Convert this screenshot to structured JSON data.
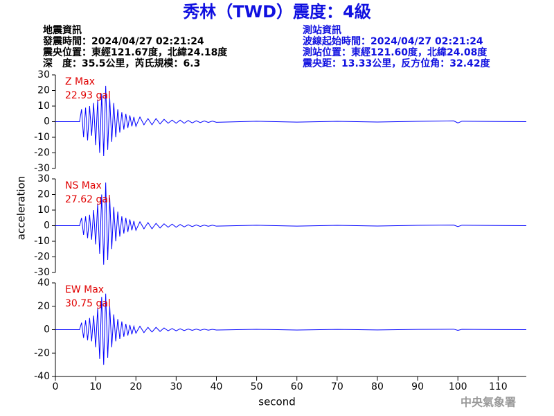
{
  "chart_data": {
    "type": "line",
    "title": "秀林（TWD）震度：4級",
    "info_left": [
      "地震資訊",
      "發震時間：2024/04/27 02:21:24",
      "震央位置：東經121.67度，北緯24.18度",
      "深　度：35.5公里，芮氏規模：6.3"
    ],
    "info_right": [
      "測站資訊",
      "波線起始時間：2024/04/27 02:21:24",
      "測站位置：東經121.60度，北緯24.08度",
      "震央距：13.33公里，反方位角：32.42度"
    ],
    "xlabel": "second",
    "ylabel": "acceleration",
    "footer": "中央氣象署",
    "xlim": [
      0,
      117
    ],
    "xticks": [
      0,
      10,
      20,
      30,
      40,
      50,
      60,
      70,
      80,
      90,
      100,
      110
    ],
    "x": [
      0,
      6,
      6.5,
      7,
      7.5,
      8,
      8.5,
      9,
      9.5,
      10,
      10.5,
      11,
      11.5,
      12,
      12.5,
      13,
      13.5,
      14,
      14.5,
      15,
      15.5,
      16,
      16.5,
      17,
      17.5,
      18,
      18.5,
      19,
      19.5,
      20,
      21,
      22,
      23,
      24,
      25,
      26,
      27,
      28,
      29,
      30,
      31,
      32,
      33,
      34,
      35,
      36,
      37,
      38,
      39,
      40,
      50,
      60,
      70,
      80,
      90,
      99,
      100,
      101,
      110,
      117
    ],
    "series": [
      {
        "name": "Z Max",
        "peak": 22.93,
        "peak_label": "22.93 gal",
        "color": "#0000ff",
        "ylim": [
          -30,
          30
        ],
        "yticks": [
          -30,
          -20,
          -10,
          0,
          10,
          20,
          30
        ],
        "values": [
          0,
          0,
          8,
          -10,
          9,
          -12,
          10,
          -9,
          12,
          -15,
          14,
          -20,
          18,
          -22,
          22.93,
          -18,
          15,
          -13,
          12,
          -10,
          8,
          -7,
          6,
          -5,
          5,
          -4,
          4,
          -3,
          3,
          -3,
          3,
          -2,
          2,
          -2,
          2,
          -1.5,
          1.5,
          -1,
          1,
          -1,
          1,
          -1,
          0.8,
          -0.8,
          0.6,
          -0.6,
          0.5,
          -0.5,
          0.4,
          -0.4,
          0.3,
          -0.3,
          0.2,
          -0.2,
          0.2,
          0.5,
          -0.8,
          0.3,
          0.1,
          0
        ]
      },
      {
        "name": "NS Max",
        "peak": 27.62,
        "peak_label": "27.62 gal",
        "color": "#0000ff",
        "ylim": [
          -30,
          30
        ],
        "yticks": [
          -30,
          -20,
          -10,
          0,
          10,
          20,
          30
        ],
        "values": [
          0,
          0,
          5,
          -6,
          6,
          -8,
          7,
          -9,
          10,
          -12,
          14,
          -18,
          20,
          -25,
          27.62,
          -22,
          18,
          -15,
          12,
          -10,
          9,
          -7,
          6,
          -5,
          5,
          -4,
          4,
          -3,
          3,
          -3,
          2.5,
          -2,
          2,
          -2,
          1.5,
          -1.5,
          1.2,
          -1,
          1,
          -1,
          0.8,
          -0.8,
          0.6,
          -0.6,
          0.5,
          -0.5,
          0.4,
          -0.4,
          0.3,
          -0.3,
          0.3,
          -0.3,
          0.2,
          -0.2,
          0.2,
          0.4,
          -0.6,
          0.3,
          0.1,
          0
        ]
      },
      {
        "name": "EW Max",
        "peak": 30.75,
        "peak_label": "30.75 gal",
        "color": "#0000ff",
        "ylim": [
          -40,
          40
        ],
        "yticks": [
          -40,
          -20,
          0,
          20,
          40
        ],
        "values": [
          0,
          0,
          6,
          -7,
          8,
          -9,
          10,
          -10,
          12,
          -15,
          18,
          -25,
          28,
          -30,
          30.75,
          -24,
          20,
          -15,
          13,
          -10,
          9,
          -8,
          7,
          -6,
          5,
          -5,
          4,
          -4,
          3,
          -3,
          3,
          -2.5,
          2,
          -2,
          2,
          -1.5,
          1.5,
          -1,
          1,
          -1,
          0.8,
          -0.8,
          0.6,
          -0.6,
          0.5,
          -0.5,
          0.4,
          -0.4,
          0.3,
          -0.3,
          0.3,
          -0.3,
          0.2,
          -0.2,
          0.2,
          0.4,
          -0.6,
          0.3,
          0.1,
          0
        ]
      }
    ]
  }
}
